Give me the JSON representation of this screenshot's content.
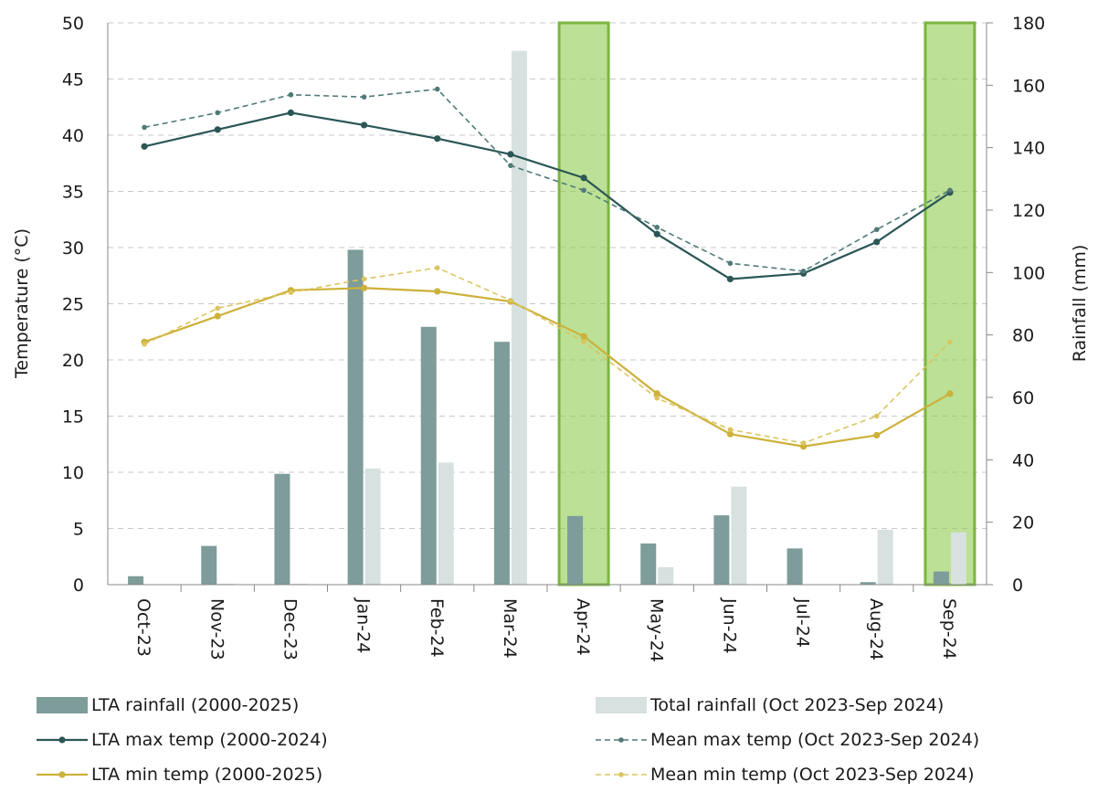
{
  "chart_data": {
    "type": "bar",
    "categories": [
      "Oct-23",
      "Nov-23",
      "Dec-23",
      "Jan-24",
      "Feb-24",
      "Mar-24",
      "Apr-24",
      "May-24",
      "Jun-24",
      "Jul-24",
      "Aug-24",
      "Sep-24"
    ],
    "y_left": {
      "label": "Temperature (°C)",
      "min": 0,
      "max": 50,
      "step": 5
    },
    "y_right": {
      "label": "Rainfall (mm)",
      "min": 0,
      "max": 180,
      "step": 20
    },
    "grid": true,
    "legend_position": "bottom",
    "highlighted_categories": [
      "Apr-24",
      "Sep-24"
    ],
    "series": [
      {
        "name": "LTA rainfall (2000-2025)",
        "kind": "bar",
        "axis": "right",
        "color": "#7d9c9a",
        "values": [
          2.7,
          12.4,
          35.5,
          107.3,
          82.6,
          77.8,
          22.0,
          13.2,
          22.2,
          11.6,
          0.8,
          4.2
        ]
      },
      {
        "name": "Total rainfall (Oct 2023-Sep 2024)",
        "kind": "bar",
        "axis": "right",
        "color": "#d6e1e0",
        "values": [
          0,
          0.3,
          0.3,
          37.2,
          39.1,
          171.0,
          0,
          5.6,
          31.4,
          0,
          17.6,
          16.8
        ]
      },
      {
        "name": "LTA max temp (2000-2024)",
        "kind": "line",
        "axis": "left",
        "color": "#2b5656",
        "dash": "solid",
        "values": [
          39.0,
          40.5,
          42.0,
          40.9,
          39.7,
          38.3,
          36.2,
          31.2,
          27.2,
          27.7,
          30.5,
          34.9
        ]
      },
      {
        "name": "Mean max temp (Oct 2023-Sep 2024)",
        "kind": "line",
        "axis": "left",
        "color": "#4f7a78",
        "dash": "dashed",
        "values": [
          40.7,
          42.0,
          43.6,
          43.4,
          44.1,
          37.3,
          35.1,
          31.8,
          28.6,
          27.9,
          31.6,
          35.1
        ]
      },
      {
        "name": "LTA min temp (2000-2025)",
        "kind": "line",
        "axis": "left",
        "color": "#cdb13a",
        "dash": "solid",
        "values": [
          21.6,
          23.9,
          26.2,
          26.4,
          26.1,
          25.2,
          22.1,
          17.0,
          13.4,
          12.3,
          13.3,
          17.0
        ]
      },
      {
        "name": "Mean min temp (Oct 2023-Sep 2024)",
        "kind": "line",
        "axis": "left",
        "color": "#dcc560",
        "dash": "dashed",
        "values": [
          21.4,
          24.6,
          26.0,
          27.2,
          28.2,
          25.3,
          21.6,
          16.6,
          13.8,
          12.6,
          15.0,
          21.6
        ]
      }
    ]
  }
}
